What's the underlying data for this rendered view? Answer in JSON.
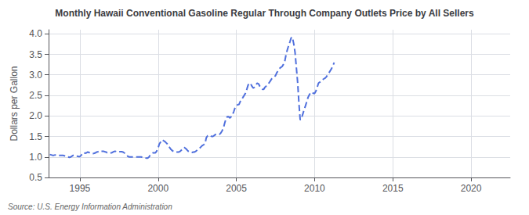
{
  "chart_data": {
    "type": "line",
    "title": "Monthly Hawaii Conventional Gasoline Regular Through Company Outlets Price by All Sellers",
    "ylabel": "Dollars per Gallon",
    "source": "Source: U.S. Energy Information Administration",
    "xlim": [
      1993.0,
      2022.5
    ],
    "ylim": [
      0.5,
      4.1
    ],
    "xticks": [
      1995,
      2000,
      2005,
      2010,
      2015,
      2020
    ],
    "yticks": [
      0.5,
      {
        "value": 1.0,
        "label": "1.0"
      },
      1.5,
      {
        "value": 2.0,
        "label": "2.0"
      },
      2.5,
      {
        "value": 3.0,
        "label": "3.0"
      },
      3.5,
      {
        "value": 4.0,
        "label": "4.0"
      }
    ],
    "grid": true,
    "line_style": "dashed",
    "x": [
      1993.08,
      1993.17,
      1993.25,
      1993.33,
      1993.42,
      1993.5,
      1993.58,
      1993.67,
      1993.75,
      1993.83,
      1993.92,
      1994.0,
      1994.08,
      1994.17,
      1994.25,
      1994.33,
      1994.42,
      1994.5,
      1994.58,
      1994.67,
      1994.75,
      1994.83,
      1994.92,
      1995.0,
      1995.08,
      1995.17,
      1995.25,
      1995.33,
      1995.42,
      1995.5,
      1995.58,
      1995.67,
      1995.75,
      1995.83,
      1995.92,
      1996.0,
      1996.08,
      1996.17,
      1996.25,
      1996.33,
      1996.42,
      1996.5,
      1996.58,
      1996.67,
      1996.75,
      1996.83,
      1996.92,
      1997.0,
      1997.08,
      1997.17,
      1997.25,
      1997.33,
      1997.42,
      1997.5,
      1997.58,
      1997.67,
      1997.75,
      1997.83,
      1997.92,
      1998.0,
      1998.08,
      1998.17,
      1998.25,
      1998.33,
      1998.42,
      1998.5,
      1998.58,
      1998.67,
      1998.75,
      1998.83,
      1998.92,
      1999.0,
      1999.08,
      1999.17,
      1999.25,
      1999.33,
      1999.42,
      1999.5,
      1999.58,
      1999.67,
      1999.75,
      1999.83,
      1999.92,
      2000.0,
      2000.08,
      2000.17,
      2000.25,
      2000.33,
      2000.42,
      2000.5,
      2000.58,
      2000.67,
      2000.75,
      2000.83,
      2000.92,
      2001.0,
      2001.08,
      2001.17,
      2001.25,
      2001.33,
      2001.42,
      2001.5,
      2001.58,
      2001.67,
      2001.75,
      2001.83,
      2001.92,
      2002.0,
      2002.08,
      2002.17,
      2002.25,
      2002.33,
      2002.42,
      2002.5,
      2002.58,
      2002.67,
      2002.75,
      2002.83,
      2002.92,
      2003.0,
      2003.08,
      2003.17,
      2003.25,
      2003.33,
      2003.42,
      2003.5,
      2003.58,
      2003.67,
      2003.75,
      2003.83,
      2003.92,
      2004.0,
      2004.08,
      2004.17,
      2004.25,
      2004.33,
      2004.42,
      2004.5,
      2004.58,
      2004.67,
      2004.75,
      2004.83,
      2004.92,
      2005.0,
      2005.08,
      2005.17,
      2005.25,
      2005.33,
      2005.42,
      2005.5,
      2005.58,
      2005.67,
      2005.75,
      2005.83,
      2005.92,
      2006.0,
      2006.08,
      2006.17,
      2006.25,
      2006.33,
      2006.42,
      2006.5,
      2006.58,
      2006.67,
      2006.75,
      2006.83,
      2006.92,
      2007.0,
      2007.08,
      2007.17,
      2007.25,
      2007.33,
      2007.42,
      2007.5,
      2007.58,
      2007.67,
      2007.75,
      2007.83,
      2007.92,
      2008.0,
      2008.08,
      2008.17,
      2008.25,
      2008.33,
      2008.42,
      2008.5,
      2008.58,
      2008.67,
      2008.75,
      2008.83,
      2008.92,
      2009.0,
      2009.08,
      2009.17,
      2009.25,
      2009.33,
      2009.42,
      2009.5,
      2009.58,
      2009.67,
      2009.75,
      2009.83,
      2009.92,
      2010.0,
      2010.08,
      2010.17,
      2010.25,
      2010.33,
      2010.42,
      2010.5,
      2010.58,
      2010.67,
      2010.75,
      2010.83,
      2010.92,
      2011.0,
      2011.08,
      2011.17,
      2011.25
    ],
    "values": [
      1.06,
      1.05,
      1.04,
      1.04,
      1.05,
      1.05,
      1.05,
      1.04,
      1.04,
      1.04,
      1.04,
      1.03,
      1.02,
      1.0,
      1.0,
      0.99,
      1.0,
      1.02,
      1.04,
      1.04,
      1.03,
      1.02,
      1.01,
      1.01,
      1.04,
      1.08,
      1.11,
      1.09,
      1.1,
      1.12,
      1.11,
      1.09,
      1.08,
      1.08,
      1.09,
      1.1,
      1.12,
      1.13,
      1.15,
      1.14,
      1.14,
      1.14,
      1.13,
      1.12,
      1.1,
      1.09,
      1.09,
      1.1,
      1.11,
      1.13,
      1.14,
      1.13,
      1.12,
      1.13,
      1.13,
      1.13,
      1.12,
      1.1,
      1.08,
      1.04,
      1.01,
      1.0,
      1.0,
      1.0,
      1.0,
      1.0,
      1.0,
      1.0,
      1.0,
      1.0,
      1.0,
      0.99,
      0.99,
      0.98,
      0.97,
      0.97,
      1.0,
      1.05,
      1.08,
      1.1,
      1.1,
      1.1,
      1.15,
      1.22,
      1.32,
      1.37,
      1.42,
      1.4,
      1.38,
      1.35,
      1.32,
      1.27,
      1.22,
      1.18,
      1.15,
      1.13,
      1.12,
      1.12,
      1.12,
      1.12,
      1.14,
      1.17,
      1.2,
      1.23,
      1.21,
      1.18,
      1.14,
      1.12,
      1.11,
      1.11,
      1.12,
      1.12,
      1.14,
      1.17,
      1.2,
      1.22,
      1.25,
      1.28,
      1.3,
      1.33,
      1.47,
      1.52,
      1.53,
      1.52,
      1.5,
      1.5,
      1.52,
      1.55,
      1.55,
      1.55,
      1.55,
      1.58,
      1.63,
      1.7,
      1.82,
      1.92,
      1.98,
      1.98,
      1.95,
      1.98,
      2.02,
      2.1,
      2.2,
      2.25,
      2.27,
      2.28,
      2.35,
      2.4,
      2.45,
      2.5,
      2.55,
      2.65,
      2.75,
      2.8,
      2.78,
      2.72,
      2.68,
      2.7,
      2.75,
      2.8,
      2.78,
      2.72,
      2.68,
      2.65,
      2.65,
      2.7,
      2.73,
      2.75,
      2.8,
      2.85,
      2.9,
      2.92,
      2.95,
      2.98,
      3.05,
      3.1,
      3.15,
      3.18,
      3.2,
      3.25,
      3.3,
      3.48,
      3.6,
      3.7,
      3.8,
      3.9,
      3.92,
      3.75,
      3.55,
      3.2,
      2.8,
      2.3,
      1.9,
      1.95,
      2.05,
      2.15,
      2.25,
      2.35,
      2.45,
      2.52,
      2.57,
      2.58,
      2.55,
      2.55,
      2.6,
      2.7,
      2.8,
      2.82,
      2.85,
      2.88,
      2.9,
      2.92,
      2.95,
      3.0,
      3.05,
      3.1,
      3.15,
      3.22,
      3.3
    ]
  }
}
